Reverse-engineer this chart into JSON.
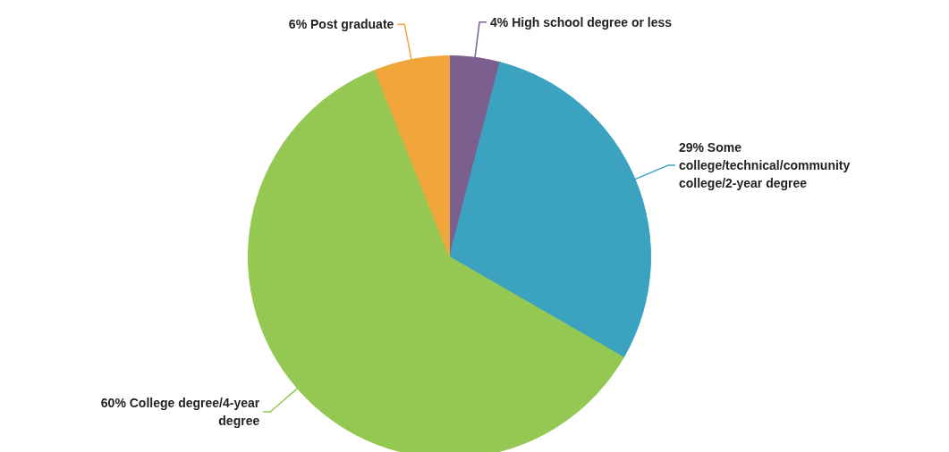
{
  "chart_data": {
    "type": "pie",
    "categories": [
      "High school degree or less",
      "Some college/technical/community college/2-year degree",
      "College degree/4-year degree",
      "Post graduate"
    ],
    "values": [
      4,
      29,
      60,
      6
    ],
    "value_labels": [
      "4%",
      "29%",
      "60%",
      "6%"
    ],
    "colors": [
      "#7b5f8f",
      "#3ba3c0",
      "#94c852",
      "#f0a63a"
    ]
  }
}
